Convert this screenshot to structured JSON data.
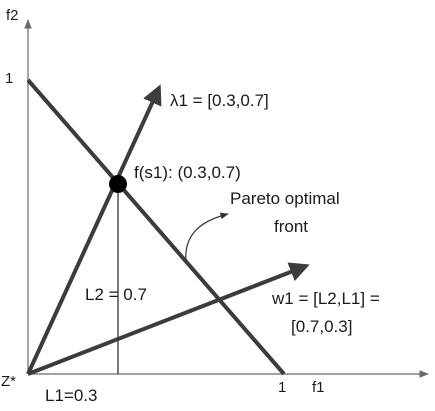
{
  "axes": {
    "y_label": "f2",
    "x_label": "f1",
    "y_tick_one": "1",
    "x_tick_one": "1",
    "origin_label": "Z*"
  },
  "labels": {
    "lambda": "λ1 =  [0.3,0.7]",
    "solution_point": "f(s1): (0.3,0.7)",
    "pareto_line1": "Pareto optimal",
    "pareto_line2": "front",
    "l2": "L2 = 0.7",
    "w1_line1": "w1 = [L2,L1] =",
    "w1_line2": "[0.7,0.3]",
    "l1": "L1=0.3"
  },
  "colors": {
    "stroke": "#3c3c3c",
    "axis": "#6a6a6a",
    "point": "#000000"
  }
}
